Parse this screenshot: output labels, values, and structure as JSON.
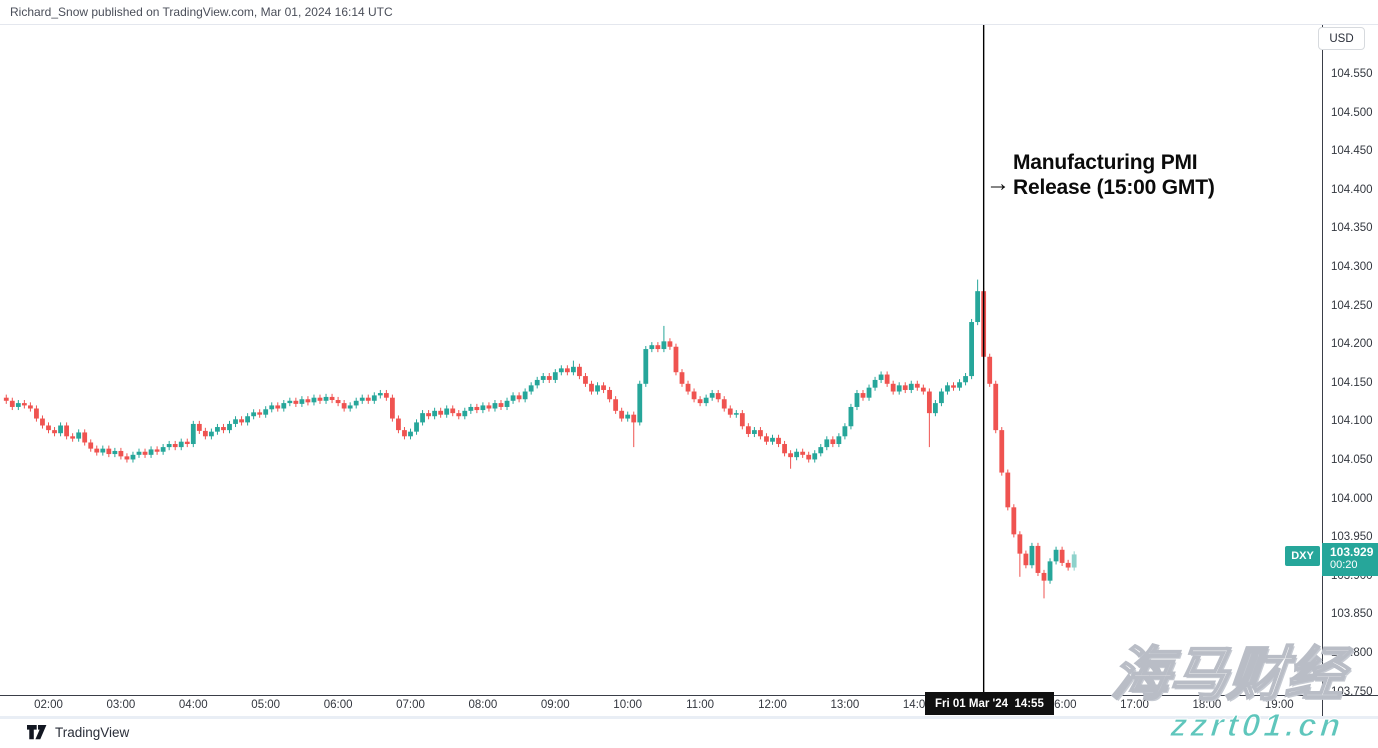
{
  "header": {
    "published_line": "Richard_Snow published on TradingView.com, Mar 01, 2024 16:14 UTC"
  },
  "annotation": {
    "arrow": "→",
    "line1": "Manufacturing PMI",
    "line2": "Release (15:00 GMT)"
  },
  "currency_button": {
    "label": "USD"
  },
  "symbol_badge": {
    "label": "DXY"
  },
  "price_badge": {
    "price": "103.929",
    "countdown": "00:20"
  },
  "time_badge": {
    "label": "Fri 01 Mar '24  14:55"
  },
  "watermark": {
    "line1": "海马财经",
    "line2": "zzrt01.cn",
    "accent_color": "#5fc6bc"
  },
  "footer": {
    "brand": "TradingView"
  },
  "colors": {
    "up": "#26a69a",
    "down": "#ef5350",
    "last_candle": "#8ed2cb",
    "badge": "#26a69a",
    "event_line": "#000000",
    "axis_line": "#3a3e48",
    "axis_text": "#33373f"
  },
  "price_axis": {
    "labels": [
      "104.550",
      "104.500",
      "104.450",
      "104.400",
      "104.350",
      "104.300",
      "104.250",
      "104.200",
      "104.150",
      "104.100",
      "104.050",
      "104.000",
      "103.950",
      "103.900",
      "103.850",
      "103.800",
      "103.750"
    ]
  },
  "time_axis": {
    "labels": [
      "02:00",
      "03:00",
      "04:00",
      "05:00",
      "06:00",
      "07:00",
      "08:00",
      "09:00",
      "10:00",
      "11:00",
      "12:00",
      "13:00",
      "14:00",
      "15:00",
      "16:00",
      "17:00",
      "18:00",
      "19:00"
    ]
  },
  "chart_data": {
    "type": "candlestick",
    "symbol": "DXY",
    "quote_currency": "USD",
    "interval": "5m",
    "session_date": "Fri 01 Mar '24",
    "event_time": "14:55",
    "event_label": "Manufacturing PMI Release (15:00 GMT)",
    "last_price": 103.929,
    "ylim": [
      103.73,
      104.585
    ],
    "open_equals_previous_close": true,
    "first_open": 104.132,
    "default_wick": 0.004,
    "closes": [
      [
        "01:25",
        104.128
      ],
      [
        "01:30",
        104.12
      ],
      [
        "01:35",
        104.125
      ],
      [
        "01:40",
        104.122
      ],
      [
        "01:45",
        104.118
      ],
      [
        "01:50",
        104.105
      ],
      [
        "01:55",
        104.096
      ],
      [
        "02:00",
        104.09
      ],
      [
        "02:05",
        104.086
      ],
      [
        "02:10",
        104.096
      ],
      [
        "02:15",
        104.082
      ],
      [
        "02:20",
        104.079
      ],
      [
        "02:25",
        104.087
      ],
      [
        "02:30",
        104.074
      ],
      [
        "02:35",
        104.066
      ],
      [
        "02:40",
        104.061
      ],
      [
        "02:45",
        104.066
      ],
      [
        "02:50",
        104.059
      ],
      [
        "02:55",
        104.063
      ],
      [
        "03:00",
        104.056
      ],
      [
        "03:05",
        104.052
      ],
      [
        "03:10",
        104.058
      ],
      [
        "03:15",
        104.062
      ],
      [
        "03:20",
        104.058
      ],
      [
        "03:25",
        104.065
      ],
      [
        "03:30",
        104.062
      ],
      [
        "03:35",
        104.068
      ],
      [
        "03:40",
        104.072
      ],
      [
        "03:45",
        104.068
      ],
      [
        "03:50",
        104.075
      ],
      [
        "03:55",
        104.072
      ],
      [
        "04:00",
        104.098
      ],
      [
        "04:05",
        104.089
      ],
      [
        "04:10",
        104.082
      ],
      [
        "04:15",
        104.088
      ],
      [
        "04:20",
        104.094
      ],
      [
        "04:25",
        104.09
      ],
      [
        "04:30",
        104.098
      ],
      [
        "04:35",
        104.104
      ],
      [
        "04:40",
        104.1
      ],
      [
        "04:45",
        104.108
      ],
      [
        "04:50",
        104.113
      ],
      [
        "04:55",
        104.11
      ],
      [
        "05:00",
        104.117
      ],
      [
        "05:05",
        104.122
      ],
      [
        "05:10",
        104.118
      ],
      [
        "05:15",
        104.125
      ],
      [
        "05:20",
        104.128
      ],
      [
        "05:25",
        104.124
      ],
      [
        "05:30",
        104.13
      ],
      [
        "05:35",
        104.126
      ],
      [
        "05:40",
        104.132
      ],
      [
        "05:45",
        104.128
      ],
      [
        "05:50",
        104.133
      ],
      [
        "05:55",
        104.129
      ],
      [
        "06:00",
        104.125
      ],
      [
        "06:05",
        104.118
      ],
      [
        "06:10",
        104.122
      ],
      [
        "06:15",
        104.128
      ],
      [
        "06:20",
        104.132
      ],
      [
        "06:25",
        104.128
      ],
      [
        "06:30",
        104.135
      ],
      [
        "06:35",
        104.138
      ],
      [
        "06:40",
        104.132
      ],
      [
        "06:45",
        104.105
      ],
      [
        "06:50",
        104.09
      ],
      [
        "06:55",
        104.082
      ],
      [
        "07:00",
        104.088
      ],
      [
        "07:05",
        104.1
      ],
      [
        "07:10",
        104.112
      ],
      [
        "07:15",
        104.108
      ],
      [
        "07:20",
        104.115
      ],
      [
        "07:25",
        104.11
      ],
      [
        "07:30",
        104.118
      ],
      [
        "07:35",
        104.112
      ],
      [
        "07:40",
        104.108
      ],
      [
        "07:45",
        104.115
      ],
      [
        "07:50",
        104.12
      ],
      [
        "07:55",
        104.116
      ],
      [
        "08:00",
        104.122
      ],
      [
        "08:05",
        104.118
      ],
      [
        "08:10",
        104.125
      ],
      [
        "08:15",
        104.12
      ],
      [
        "08:20",
        104.128
      ],
      [
        "08:25",
        104.135
      ],
      [
        "08:30",
        104.13
      ],
      [
        "08:35",
        104.14
      ],
      [
        "08:40",
        104.148
      ],
      [
        "08:45",
        104.155
      ],
      [
        "08:50",
        104.16
      ],
      [
        "08:55",
        104.155
      ],
      [
        "09:00",
        104.165
      ],
      [
        "09:05",
        104.17
      ],
      [
        "09:10",
        104.165
      ],
      [
        "09:15",
        104.172
      ],
      [
        "09:20",
        104.16
      ],
      [
        "09:25",
        104.15
      ],
      [
        "09:30",
        104.14
      ],
      [
        "09:35",
        104.148
      ],
      [
        "09:40",
        104.142
      ],
      [
        "09:45",
        104.13
      ],
      [
        "09:50",
        104.115
      ],
      [
        "09:55",
        104.105
      ],
      [
        "10:00",
        104.11
      ],
      [
        "10:05",
        104.1
      ],
      [
        "10:10",
        104.15
      ],
      [
        "10:15",
        104.195
      ],
      [
        "10:20",
        104.2
      ],
      [
        "10:25",
        104.195
      ],
      [
        "10:30",
        104.205
      ],
      [
        "10:35",
        104.198
      ],
      [
        "10:40",
        104.165
      ],
      [
        "10:45",
        104.15
      ],
      [
        "10:50",
        104.14
      ],
      [
        "10:55",
        104.13
      ],
      [
        "11:00",
        104.125
      ],
      [
        "11:05",
        104.132
      ],
      [
        "11:10",
        104.138
      ],
      [
        "11:15",
        104.13
      ],
      [
        "11:20",
        104.118
      ],
      [
        "11:25",
        104.11
      ],
      [
        "11:30",
        104.112
      ],
      [
        "11:35",
        104.095
      ],
      [
        "11:40",
        104.085
      ],
      [
        "11:45",
        104.09
      ],
      [
        "11:50",
        104.082
      ],
      [
        "11:55",
        104.075
      ],
      [
        "12:00",
        104.08
      ],
      [
        "12:05",
        104.072
      ],
      [
        "12:10",
        104.06
      ],
      [
        "12:15",
        104.055
      ],
      [
        "12:20",
        104.062
      ],
      [
        "12:25",
        104.058
      ],
      [
        "12:30",
        104.052
      ],
      [
        "12:35",
        104.06
      ],
      [
        "12:40",
        104.068
      ],
      [
        "12:45",
        104.078
      ],
      [
        "12:50",
        104.072
      ],
      [
        "12:55",
        104.082
      ],
      [
        "13:00",
        104.095
      ],
      [
        "13:05",
        104.12
      ],
      [
        "13:10",
        104.138
      ],
      [
        "13:15",
        104.132
      ],
      [
        "13:20",
        104.145
      ],
      [
        "13:25",
        104.155
      ],
      [
        "13:30",
        104.162
      ],
      [
        "13:35",
        104.15
      ],
      [
        "13:40",
        104.14
      ],
      [
        "13:45",
        104.148
      ],
      [
        "13:50",
        104.142
      ],
      [
        "13:55",
        104.15
      ],
      [
        "14:00",
        104.145
      ],
      [
        "14:05",
        104.14
      ],
      [
        "14:10",
        104.112
      ],
      [
        "14:15",
        104.125
      ],
      [
        "14:20",
        104.14
      ],
      [
        "14:25",
        104.148
      ],
      [
        "14:30",
        104.145
      ],
      [
        "14:35",
        104.152
      ],
      [
        "14:40",
        104.16
      ],
      [
        "14:45",
        104.23
      ],
      [
        "14:50",
        104.27
      ],
      [
        "14:55",
        104.185
      ],
      [
        "15:00",
        104.15
      ],
      [
        "15:05",
        104.09
      ],
      [
        "15:10",
        104.035
      ],
      [
        "15:15",
        103.99
      ],
      [
        "15:20",
        103.955
      ],
      [
        "15:25",
        103.93
      ],
      [
        "15:30",
        103.915
      ],
      [
        "15:35",
        103.94
      ],
      [
        "15:40",
        103.905
      ],
      [
        "15:45",
        103.895
      ],
      [
        "15:50",
        103.92
      ],
      [
        "15:55",
        103.935
      ],
      [
        "16:00",
        103.918
      ],
      [
        "16:05",
        103.912
      ],
      [
        "16:10",
        103.929
      ]
    ],
    "wick_overrides": {
      "09:15": {
        "high": 104.18
      },
      "10:05": {
        "low": 104.068
      },
      "10:30": {
        "high": 104.225
      },
      "12:15": {
        "low": 104.04
      },
      "14:10": {
        "low": 104.068
      },
      "14:50": {
        "high": 104.285
      },
      "15:25": {
        "low": 103.9
      },
      "15:45": {
        "low": 103.872
      }
    }
  }
}
